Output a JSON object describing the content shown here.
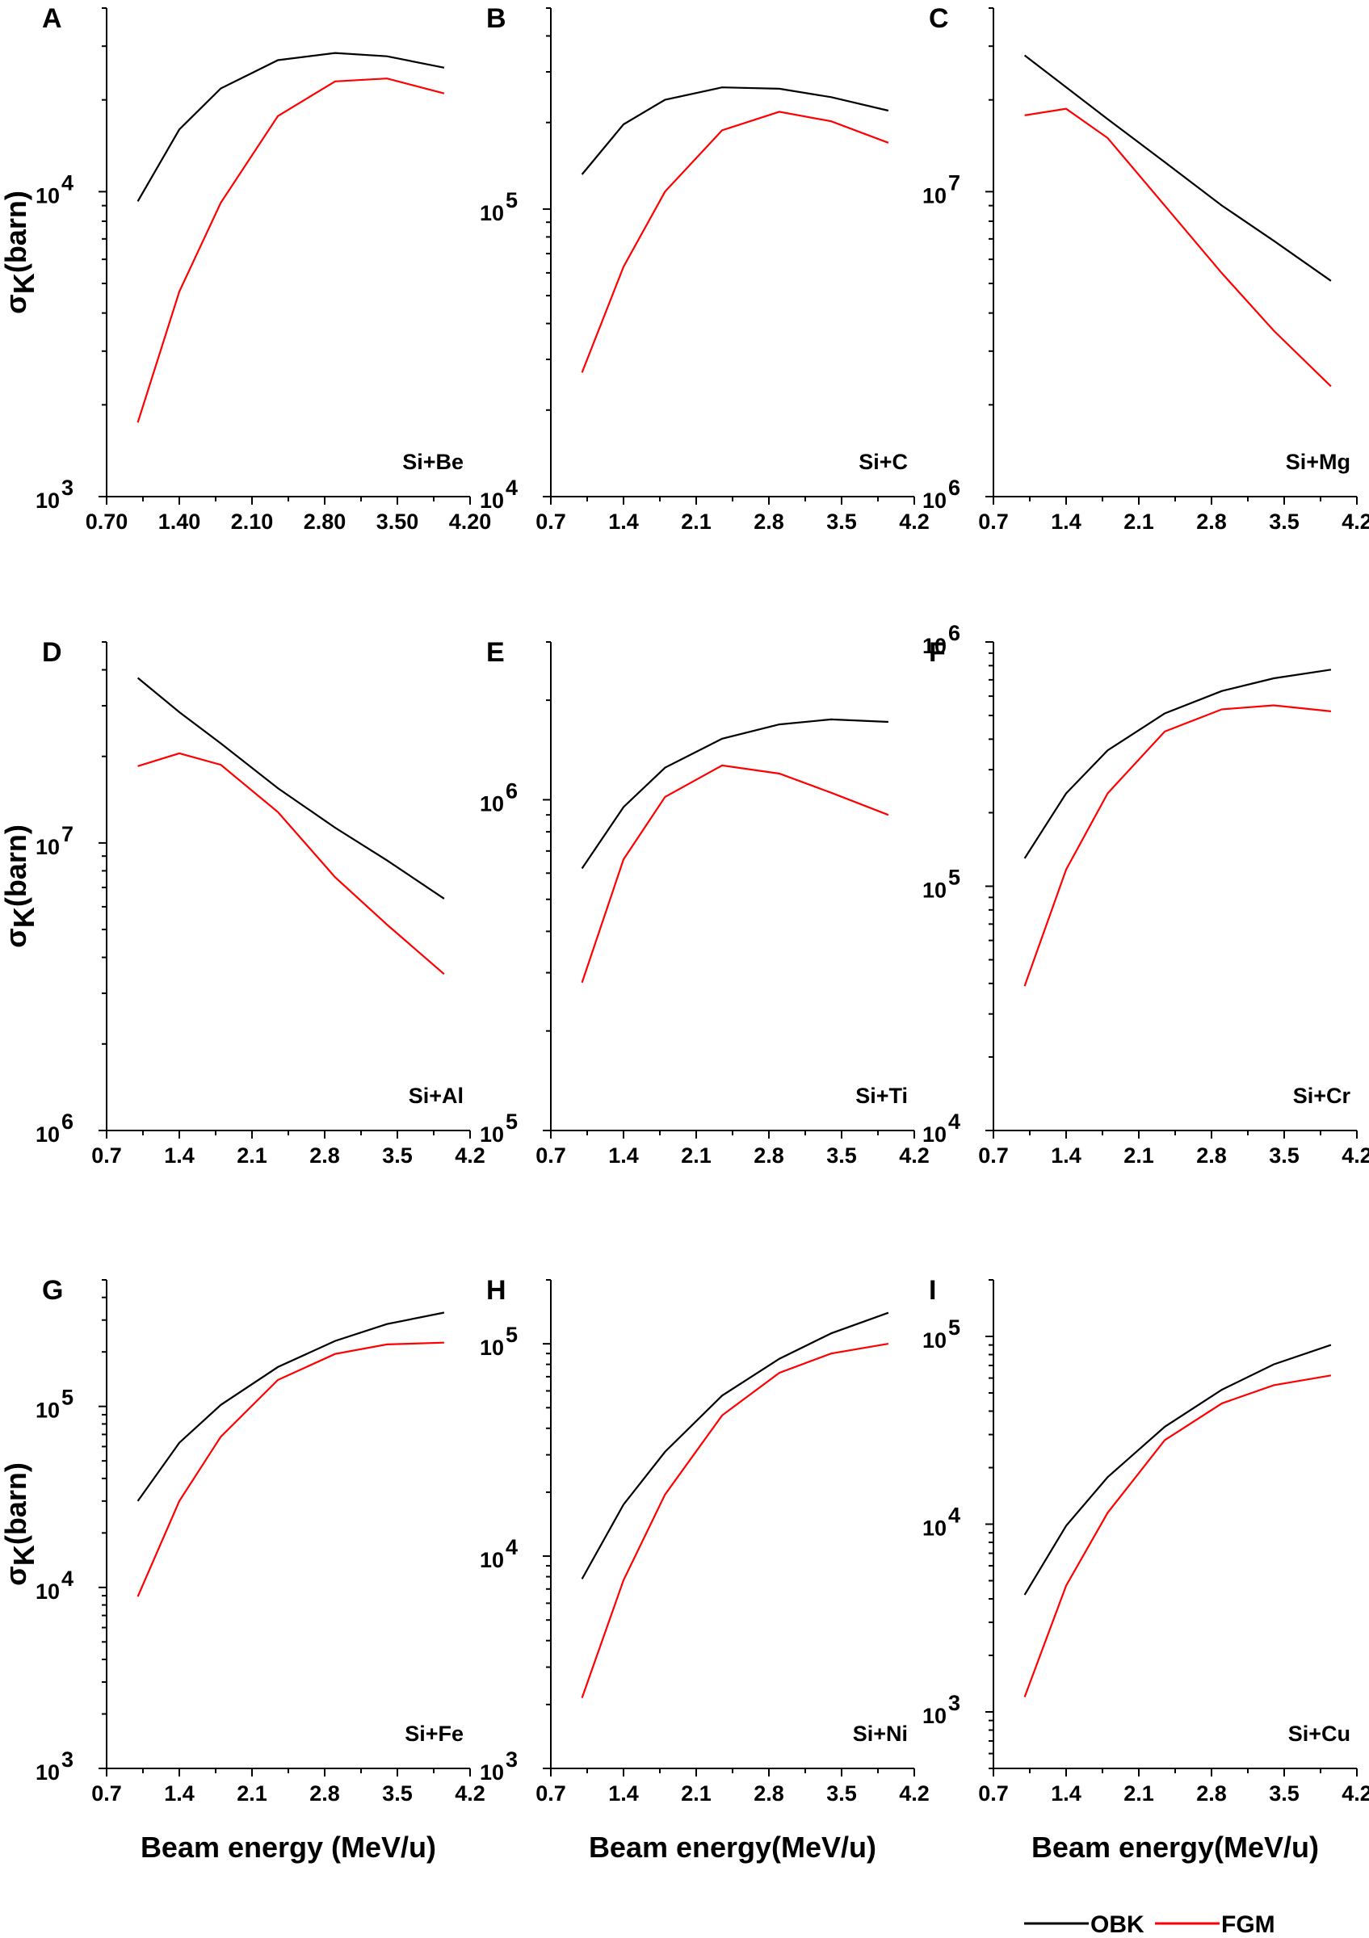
{
  "chart_data": [
    {
      "type": "line",
      "letter": "A",
      "system": "Si+Be",
      "x_ticks": [
        "0.70",
        "1.40",
        "2.10",
        "2.80",
        "3.50",
        "4.20"
      ],
      "xlim": [
        0.7,
        4.2
      ],
      "yscale": "log",
      "ylim": [
        1000,
        40000
      ],
      "y_tick_labels": [
        {
          "base": "10",
          "exp": "3",
          "value": 1000
        },
        {
          "base": "10",
          "exp": "4",
          "value": 10000
        }
      ],
      "ylabel": "σK(barn)",
      "xlabel": "",
      "x": [
        1.0,
        1.4,
        1.8,
        2.35,
        2.9,
        3.4,
        3.95
      ],
      "series": [
        {
          "name": "OBK",
          "color": "#000000",
          "values": [
            9300,
            16000,
            21800,
            27000,
            28500,
            27800,
            25500
          ]
        },
        {
          "name": "FGM",
          "color": "#ff0000",
          "values": [
            1750,
            4700,
            9200,
            17700,
            23000,
            23500,
            21000
          ]
        }
      ]
    },
    {
      "type": "line",
      "letter": "B",
      "system": "Si+C",
      "x_ticks": [
        "0.7",
        "1.4",
        "2.1",
        "2.8",
        "3.5",
        "4.2"
      ],
      "xlim": [
        0.7,
        4.2
      ],
      "yscale": "log",
      "ylim": [
        10000,
        500000
      ],
      "y_tick_labels": [
        {
          "base": "10",
          "exp": "4",
          "value": 10000
        },
        {
          "base": "10",
          "exp": "5",
          "value": 100000
        }
      ],
      "ylabel": "",
      "xlabel": "",
      "x": [
        1.0,
        1.4,
        1.8,
        2.35,
        2.9,
        3.4,
        3.95
      ],
      "series": [
        {
          "name": "OBK",
          "color": "#000000",
          "values": [
            132000,
            197000,
            240000,
            265000,
            262000,
            245000,
            220000
          ]
        },
        {
          "name": "FGM",
          "color": "#ff0000",
          "values": [
            27000,
            63000,
            115000,
            188000,
            218000,
            202000,
            170000
          ]
        }
      ]
    },
    {
      "type": "line",
      "letter": "C",
      "system": "Si+Mg",
      "x_ticks": [
        "0.7",
        "1.4",
        "2.1",
        "2.8",
        "3.5",
        "4.2"
      ],
      "xlim": [
        0.7,
        4.2
      ],
      "yscale": "log",
      "ylim": [
        1000000,
        40000000
      ],
      "y_tick_labels": [
        {
          "base": "10",
          "exp": "6",
          "value": 1000000
        },
        {
          "base": "10",
          "exp": "7",
          "value": 10000000
        }
      ],
      "ylabel": "",
      "xlabel": "",
      "x": [
        1.0,
        1.4,
        1.8,
        2.35,
        2.9,
        3.4,
        3.95
      ],
      "series": [
        {
          "name": "OBK",
          "color": "#000000",
          "values": [
            28000000,
            22000000,
            17300000,
            12500000,
            9000000,
            6900000,
            5100000
          ]
        },
        {
          "name": "FGM",
          "color": "#ff0000",
          "values": [
            17800000,
            18700000,
            15000000,
            9000000,
            5400000,
            3500000,
            2300000
          ]
        }
      ]
    },
    {
      "type": "line",
      "letter": "D",
      "system": "Si+Al",
      "x_ticks": [
        "0.7",
        "1.4",
        "2.1",
        "2.8",
        "3.5",
        "4.2"
      ],
      "xlim": [
        0.7,
        4.2
      ],
      "yscale": "log",
      "ylim": [
        1000000,
        50000000
      ],
      "y_tick_labels": [
        {
          "base": "10",
          "exp": "6",
          "value": 1000000
        },
        {
          "base": "10",
          "exp": "7",
          "value": 10000000
        }
      ],
      "ylabel": "σK(barn)",
      "xlabel": "",
      "x": [
        1.0,
        1.4,
        1.8,
        2.35,
        2.9,
        3.4,
        3.95
      ],
      "series": [
        {
          "name": "OBK",
          "color": "#000000",
          "values": [
            37500000,
            28500000,
            22200000,
            15500000,
            11300000,
            8700000,
            6400000
          ]
        },
        {
          "name": "FGM",
          "color": "#ff0000",
          "values": [
            18500000,
            20500000,
            18700000,
            12800000,
            7600000,
            5200000,
            3500000
          ]
        }
      ]
    },
    {
      "type": "line",
      "letter": "E",
      "system": "Si+Ti",
      "x_ticks": [
        "0.7",
        "1.4",
        "2.1",
        "2.8",
        "3.5",
        "4.2"
      ],
      "xlim": [
        0.7,
        4.2
      ],
      "yscale": "log",
      "ylim": [
        100000,
        3000000
      ],
      "y_tick_labels": [
        {
          "base": "10",
          "exp": "5",
          "value": 100000
        },
        {
          "base": "10",
          "exp": "6",
          "value": 1000000
        }
      ],
      "ylabel": "",
      "xlabel": "",
      "x": [
        1.0,
        1.4,
        1.8,
        2.35,
        2.9,
        3.4,
        3.95
      ],
      "series": [
        {
          "name": "OBK",
          "color": "#000000",
          "values": [
            620000,
            950000,
            1250000,
            1530000,
            1690000,
            1750000,
            1720000
          ]
        },
        {
          "name": "FGM",
          "color": "#ff0000",
          "values": [
            280000,
            660000,
            1020000,
            1270000,
            1200000,
            1050000,
            900000
          ]
        }
      ]
    },
    {
      "type": "line",
      "letter": "F",
      "system": "Si+Cr",
      "x_ticks": [
        "0.7",
        "1.4",
        "2.1",
        "2.8",
        "3.5",
        "4.2"
      ],
      "xlim": [
        0.7,
        4.2
      ],
      "yscale": "log",
      "ylim": [
        10000,
        1000000
      ],
      "y_tick_labels": [
        {
          "base": "10",
          "exp": "4",
          "value": 10000
        },
        {
          "base": "10",
          "exp": "5",
          "value": 100000
        },
        {
          "base": "10",
          "exp": "6",
          "value": 1000000
        }
      ],
      "ylabel": "",
      "xlabel": "",
      "x": [
        1.0,
        1.4,
        1.8,
        2.35,
        2.9,
        3.4,
        3.95
      ],
      "series": [
        {
          "name": "OBK",
          "color": "#000000",
          "values": [
            130000,
            240000,
            360000,
            510000,
            630000,
            710000,
            770000
          ]
        },
        {
          "name": "FGM",
          "color": "#ff0000",
          "values": [
            39000,
            117000,
            240000,
            430000,
            530000,
            550000,
            520000
          ]
        }
      ]
    },
    {
      "type": "line",
      "letter": "G",
      "system": "Si+Fe",
      "x_ticks": [
        "0.7",
        "1.4",
        "2.1",
        "2.8",
        "3.5",
        "4.2"
      ],
      "xlim": [
        0.7,
        4.2
      ],
      "yscale": "log",
      "ylim": [
        1000,
        500000
      ],
      "y_tick_labels": [
        {
          "base": "10",
          "exp": "3",
          "value": 1000
        },
        {
          "base": "10",
          "exp": "4",
          "value": 10000
        },
        {
          "base": "10",
          "exp": "5",
          "value": 100000
        }
      ],
      "ylabel": "σK(barn)",
      "xlabel": "Beam energy (MeV/u)",
      "x": [
        1.0,
        1.4,
        1.8,
        2.35,
        2.9,
        3.4,
        3.95
      ],
      "series": [
        {
          "name": "OBK",
          "color": "#000000",
          "values": [
            30000,
            63000,
            102000,
            165000,
            230000,
            285000,
            330000
          ]
        },
        {
          "name": "FGM",
          "color": "#ff0000",
          "values": [
            8900,
            30000,
            68000,
            140000,
            195000,
            220000,
            225000
          ]
        }
      ]
    },
    {
      "type": "line",
      "letter": "H",
      "system": "Si+Ni",
      "x_ticks": [
        "0.7",
        "1.4",
        "2.1",
        "2.8",
        "3.5",
        "4.2"
      ],
      "xlim": [
        0.7,
        4.2
      ],
      "yscale": "log",
      "ylim": [
        1000,
        200000
      ],
      "y_tick_labels": [
        {
          "base": "10",
          "exp": "3",
          "value": 1000
        },
        {
          "base": "10",
          "exp": "4",
          "value": 10000
        },
        {
          "base": "10",
          "exp": "5",
          "value": 100000
        }
      ],
      "ylabel": "",
      "xlabel": "Beam energy(MeV/u)",
      "x": [
        1.0,
        1.4,
        1.8,
        2.35,
        2.9,
        3.4,
        3.95
      ],
      "series": [
        {
          "name": "OBK",
          "color": "#000000",
          "values": [
            7800,
            17500,
            31000,
            57000,
            85000,
            112000,
            140000
          ]
        },
        {
          "name": "FGM",
          "color": "#ff0000",
          "values": [
            2150,
            7700,
            19500,
            46000,
            73000,
            90000,
            100000
          ]
        }
      ]
    },
    {
      "type": "line",
      "letter": "I",
      "system": "Si+Cu",
      "x_ticks": [
        "0.7",
        "1.4",
        "2.1",
        "2.8",
        "3.5",
        "4.2"
      ],
      "xlim": [
        0.7,
        4.2
      ],
      "yscale": "log",
      "ylim": [
        500,
        200000
      ],
      "y_tick_labels": [
        {
          "base": "10",
          "exp": "3",
          "value": 1000
        },
        {
          "base": "10",
          "exp": "4",
          "value": 10000
        },
        {
          "base": "10",
          "exp": "5",
          "value": 100000
        }
      ],
      "ylabel": "",
      "xlabel": "Beam energy(MeV/u)",
      "x": [
        1.0,
        1.4,
        1.8,
        2.35,
        2.9,
        3.4,
        3.95
      ],
      "series": [
        {
          "name": "OBK",
          "color": "#000000",
          "values": [
            4200,
            9800,
            17800,
            33000,
            52000,
            71000,
            90000
          ]
        },
        {
          "name": "FGM",
          "color": "#ff0000",
          "values": [
            1200,
            4700,
            11500,
            28000,
            44000,
            55000,
            62000
          ]
        }
      ]
    }
  ],
  "legend": {
    "position": "bottom-right",
    "entries": [
      {
        "name": "OBK",
        "color": "#000000"
      },
      {
        "name": "FGM",
        "color": "#ff0000"
      }
    ]
  }
}
